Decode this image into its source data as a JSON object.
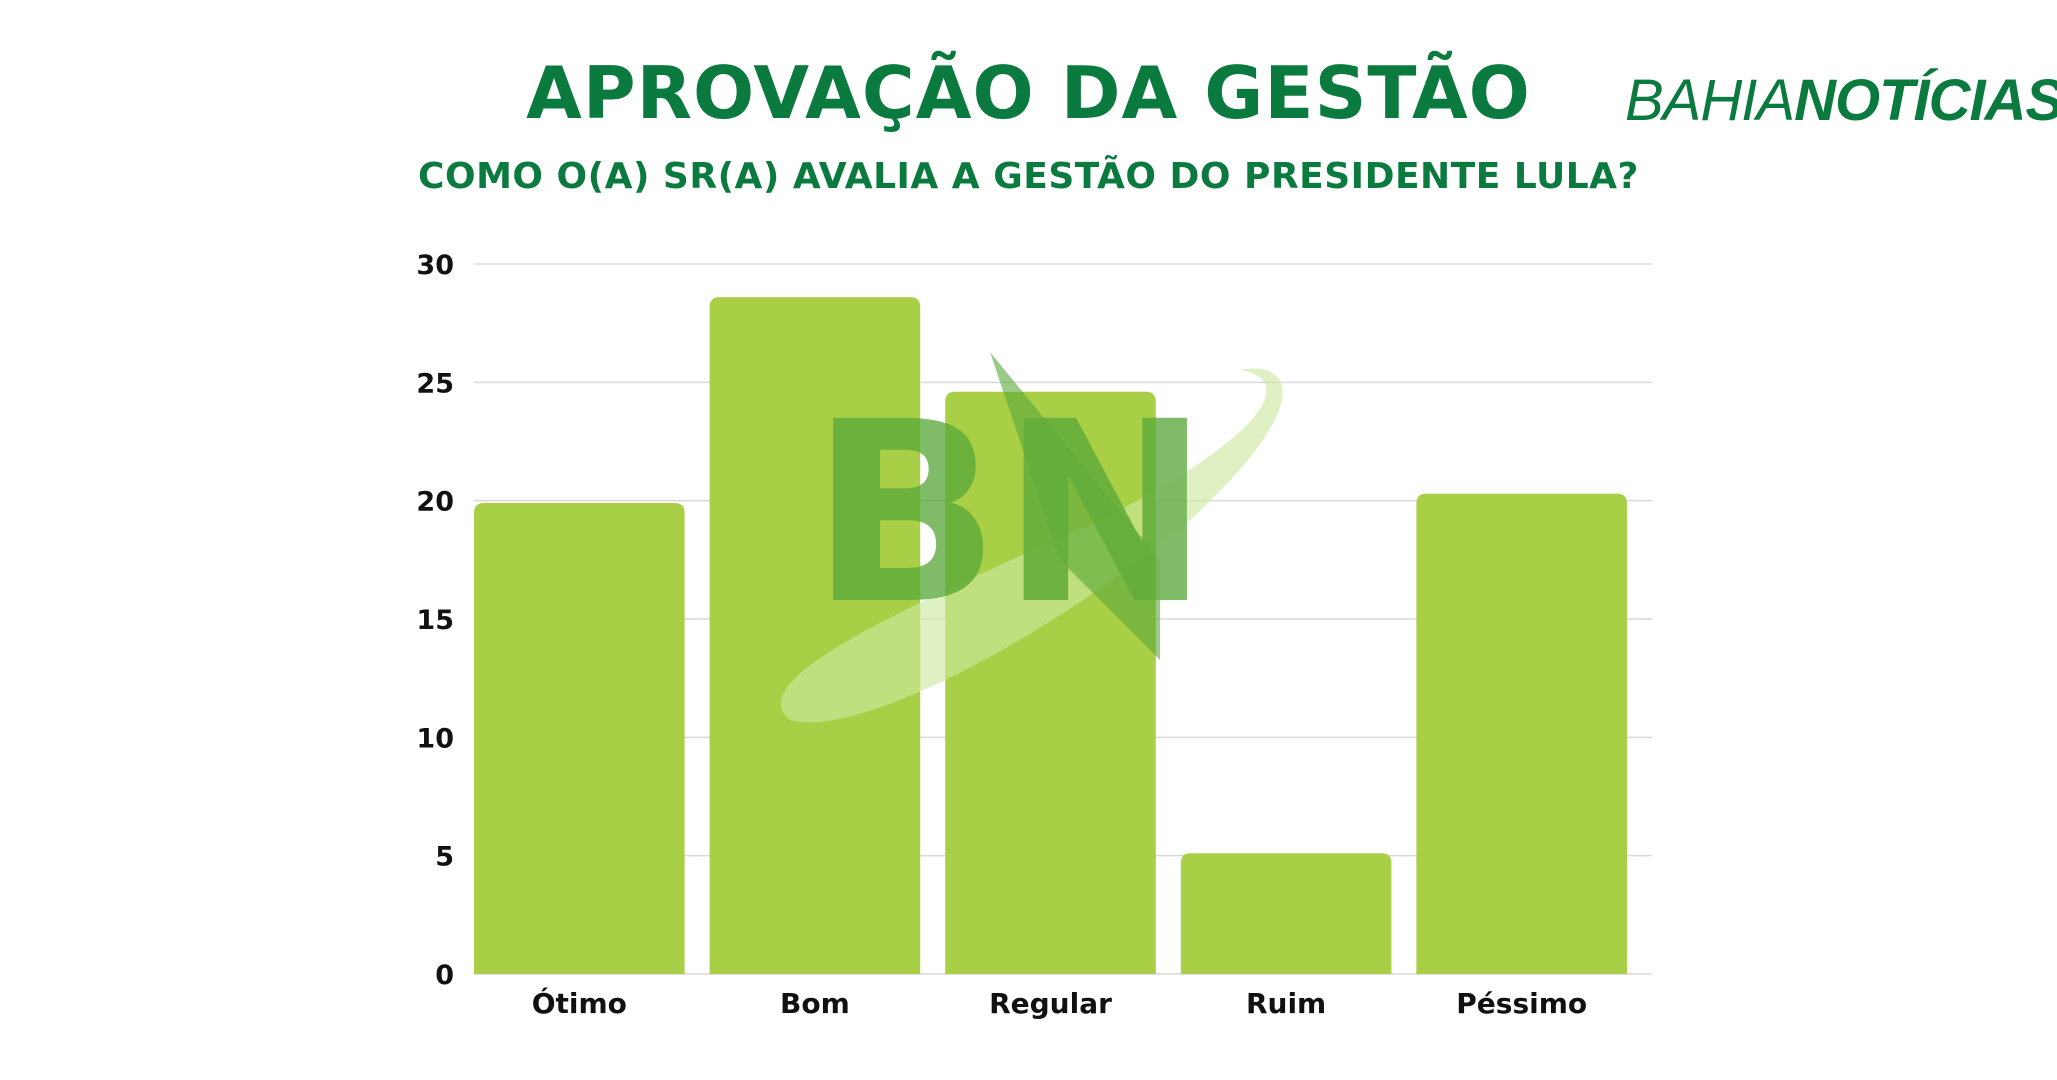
{
  "header": {
    "title": "APROVAÇÃO DA GESTÃO",
    "subtitle": "COMO O(A) SR(A) AVALIA A GESTÃO DO PRESIDENTE LULA?",
    "brand_part1": "BAHIA",
    "brand_part2": "NOTÍCIAS"
  },
  "watermark": {
    "text": "BN"
  },
  "colors": {
    "title": "#0a7a3e",
    "bar": "#a8cf45",
    "grid": "#d9d9d9",
    "watermark": "#5aa83a"
  },
  "chart_data": {
    "type": "bar",
    "categories": [
      "Ótimo",
      "Bom",
      "Regular",
      "Ruim",
      "Péssimo"
    ],
    "values": [
      19.9,
      28.6,
      24.6,
      5.1,
      20.3
    ],
    "ylim": [
      0,
      30
    ],
    "yticks": [
      0,
      5,
      10,
      15,
      20,
      25,
      30
    ],
    "grid": true,
    "legend": "none"
  }
}
